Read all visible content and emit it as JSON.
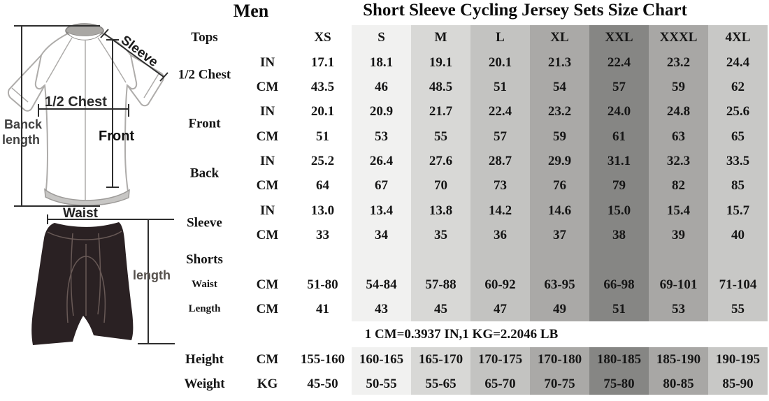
{
  "chart_data": {
    "type": "table",
    "titles": {
      "men": "Men",
      "main": "Short Sleeve Cycling Jersey Sets Size Chart"
    },
    "header": {
      "corner": "Tops",
      "sizes": [
        "XS",
        "S",
        "M",
        "L",
        "XL",
        "XXL",
        "XXXL",
        "4XL"
      ]
    },
    "groups": [
      {
        "label": "1/2 Chest",
        "rows": [
          {
            "unit": "IN",
            "values": [
              "17.1",
              "18.1",
              "19.1",
              "20.1",
              "21.3",
              "22.4",
              "23.2",
              "24.4"
            ]
          },
          {
            "unit": "CM",
            "values": [
              "43.5",
              "46",
              "48.5",
              "51",
              "54",
              "57",
              "59",
              "62"
            ]
          }
        ]
      },
      {
        "label": "Front",
        "rows": [
          {
            "unit": "IN",
            "values": [
              "20.1",
              "20.9",
              "21.7",
              "22.4",
              "23.2",
              "24.0",
              "24.8",
              "25.6"
            ]
          },
          {
            "unit": "CM",
            "values": [
              "51",
              "53",
              "55",
              "57",
              "59",
              "61",
              "63",
              "65"
            ]
          }
        ]
      },
      {
        "label": "Back",
        "rows": [
          {
            "unit": "IN",
            "values": [
              "25.2",
              "26.4",
              "27.6",
              "28.7",
              "29.9",
              "31.1",
              "32.3",
              "33.5"
            ]
          },
          {
            "unit": "CM",
            "values": [
              "64",
              "67",
              "70",
              "73",
              "76",
              "79",
              "82",
              "85"
            ]
          }
        ]
      },
      {
        "label": "Sleeve",
        "rows": [
          {
            "unit": "IN",
            "values": [
              "13.0",
              "13.4",
              "13.8",
              "14.2",
              "14.6",
              "15.0",
              "15.4",
              "15.7"
            ]
          },
          {
            "unit": "CM",
            "values": [
              "33",
              "34",
              "35",
              "36",
              "37",
              "38",
              "39",
              "40"
            ]
          }
        ]
      }
    ],
    "shorts": {
      "label": "Shorts",
      "rows": [
        {
          "label": "Waist",
          "unit": "CM",
          "values": [
            "51-80",
            "54-84",
            "57-88",
            "60-92",
            "63-95",
            "66-98",
            "69-101",
            "71-104"
          ]
        },
        {
          "label": "Length",
          "unit": "CM",
          "values": [
            "41",
            "43",
            "45",
            "47",
            "49",
            "51",
            "53",
            "55"
          ]
        }
      ]
    },
    "note": "1 CM=0.3937 IN,1 KG=2.2046 LB",
    "body": [
      {
        "label": "Height",
        "unit": "CM",
        "values": [
          "155-160",
          "160-165",
          "165-170",
          "170-175",
          "170-180",
          "180-185",
          "185-190",
          "190-195"
        ]
      },
      {
        "label": "Weight",
        "unit": "KG",
        "values": [
          "45-50",
          "50-55",
          "55-65",
          "65-70",
          "70-75",
          "75-80",
          "80-85",
          "85-90"
        ]
      }
    ]
  },
  "diagram": {
    "back_length_line1": "Banck",
    "back_length_line2": "length",
    "sleeve": "Sleeve",
    "half_chest": "1/2 Chest",
    "front": "Front",
    "waist": "Waist",
    "shorts_length": "length"
  },
  "colors": {
    "column_bands": [
      "#ffffff",
      "#f1f1f0",
      "#d8d8d6",
      "#c3c3c1",
      "#aaa9a7",
      "#868684",
      "#a8a7a5",
      "#c8c8c6"
    ],
    "shorts_fill": "#2a2123",
    "shorts_seams": "#6f605c",
    "jersey_line": "#aeacaa",
    "measure_line": "#2e2e2e"
  }
}
